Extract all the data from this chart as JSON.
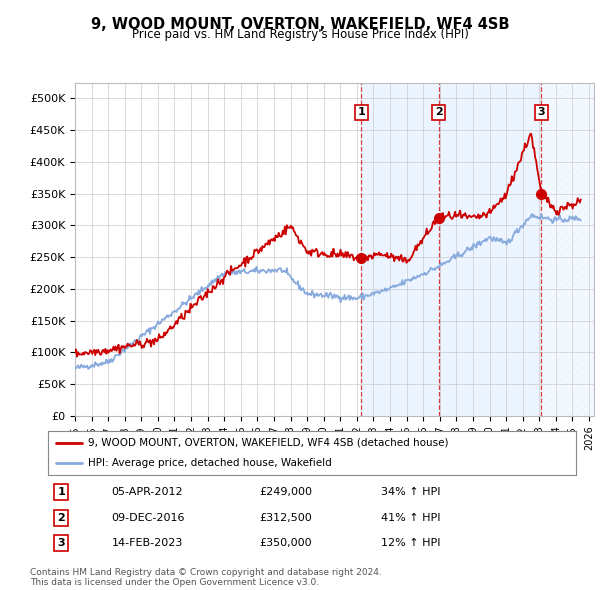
{
  "title": "9, WOOD MOUNT, OVERTON, WAKEFIELD, WF4 4SB",
  "subtitle": "Price paid vs. HM Land Registry's House Price Index (HPI)",
  "ylim": [
    0,
    525000
  ],
  "yticks": [
    0,
    50000,
    100000,
    150000,
    200000,
    250000,
    300000,
    350000,
    400000,
    450000,
    500000
  ],
  "ytick_labels": [
    "£0",
    "£50K",
    "£100K",
    "£150K",
    "£200K",
    "£250K",
    "£300K",
    "£350K",
    "£400K",
    "£450K",
    "£500K"
  ],
  "xlim_start": 1995.0,
  "xlim_end": 2026.3,
  "xticks": [
    1995,
    1996,
    1997,
    1998,
    1999,
    2000,
    2001,
    2002,
    2003,
    2004,
    2005,
    2006,
    2007,
    2008,
    2009,
    2010,
    2011,
    2012,
    2013,
    2014,
    2015,
    2016,
    2017,
    2018,
    2019,
    2020,
    2021,
    2022,
    2023,
    2024,
    2025,
    2026
  ],
  "sale_dates": [
    2012.27,
    2016.94,
    2023.12
  ],
  "sale_prices": [
    249000,
    312500,
    350000
  ],
  "sale_labels": [
    "1",
    "2",
    "3"
  ],
  "sale_date_labels": [
    "05-APR-2012",
    "09-DEC-2016",
    "14-FEB-2023"
  ],
  "sale_price_labels": [
    "£249,000",
    "£312,500",
    "£350,000"
  ],
  "sale_hpi_labels": [
    "34% ↑ HPI",
    "41% ↑ HPI",
    "12% ↑ HPI"
  ],
  "legend_line1": "9, WOOD MOUNT, OVERTON, WAKEFIELD, WF4 4SB (detached house)",
  "legend_line2": "HPI: Average price, detached house, Wakefield",
  "footer_line1": "Contains HM Land Registry data © Crown copyright and database right 2024.",
  "footer_line2": "This data is licensed under the Open Government Licence v3.0.",
  "line_color_red": "#cc0000",
  "line_color_blue": "#88aadd",
  "background_color": "#ffffff",
  "grid_color": "#cccccc",
  "shade_color": "#ddeeff"
}
